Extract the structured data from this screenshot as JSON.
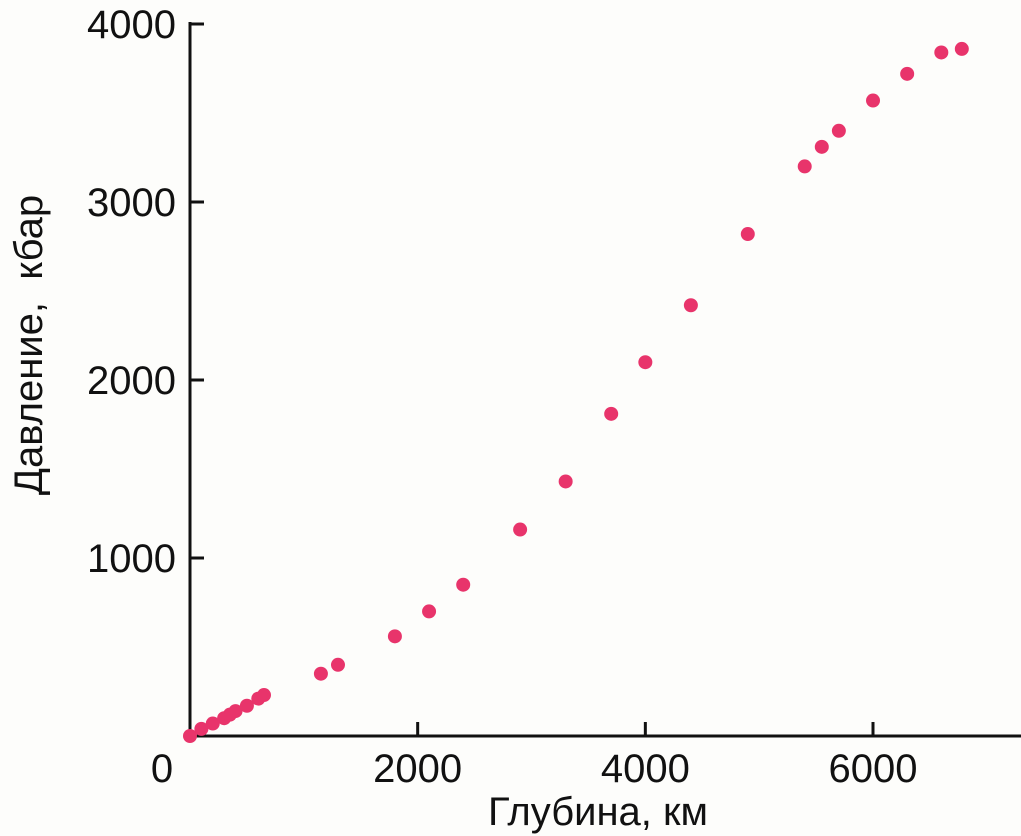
{
  "chart_data": {
    "type": "scatter",
    "title": "",
    "xlabel": "Глубина, км",
    "ylabel": "Давление,  кбар",
    "xlim": [
      0,
      7300
    ],
    "ylim": [
      0,
      4000
    ],
    "xticks": [
      0,
      2000,
      4000,
      6000
    ],
    "xtick_labels": [
      "0",
      "2000",
      "4000",
      "6000"
    ],
    "yticks": [
      1000,
      2000,
      3000,
      4000
    ],
    "ytick_labels": [
      "1000",
      "2000",
      "3000",
      "4000"
    ],
    "grid": false,
    "legend": "none",
    "point_color": "#e8346b",
    "series": [
      {
        "points": [
          {
            "x": 0,
            "y": 0
          },
          {
            "x": 100,
            "y": 40
          },
          {
            "x": 200,
            "y": 70
          },
          {
            "x": 300,
            "y": 100
          },
          {
            "x": 350,
            "y": 120
          },
          {
            "x": 400,
            "y": 140
          },
          {
            "x": 500,
            "y": 170
          },
          {
            "x": 600,
            "y": 210
          },
          {
            "x": 650,
            "y": 230
          },
          {
            "x": 1150,
            "y": 350
          },
          {
            "x": 1300,
            "y": 400
          },
          {
            "x": 1800,
            "y": 560
          },
          {
            "x": 2100,
            "y": 700
          },
          {
            "x": 2400,
            "y": 850
          },
          {
            "x": 2900,
            "y": 1160
          },
          {
            "x": 3300,
            "y": 1430
          },
          {
            "x": 3700,
            "y": 1810
          },
          {
            "x": 4000,
            "y": 2100
          },
          {
            "x": 4400,
            "y": 2420
          },
          {
            "x": 4900,
            "y": 2820
          },
          {
            "x": 5400,
            "y": 3200
          },
          {
            "x": 5550,
            "y": 3310
          },
          {
            "x": 5700,
            "y": 3400
          },
          {
            "x": 6000,
            "y": 3570
          },
          {
            "x": 6300,
            "y": 3720
          },
          {
            "x": 6600,
            "y": 3840
          },
          {
            "x": 6780,
            "y": 3860
          }
        ]
      }
    ]
  }
}
